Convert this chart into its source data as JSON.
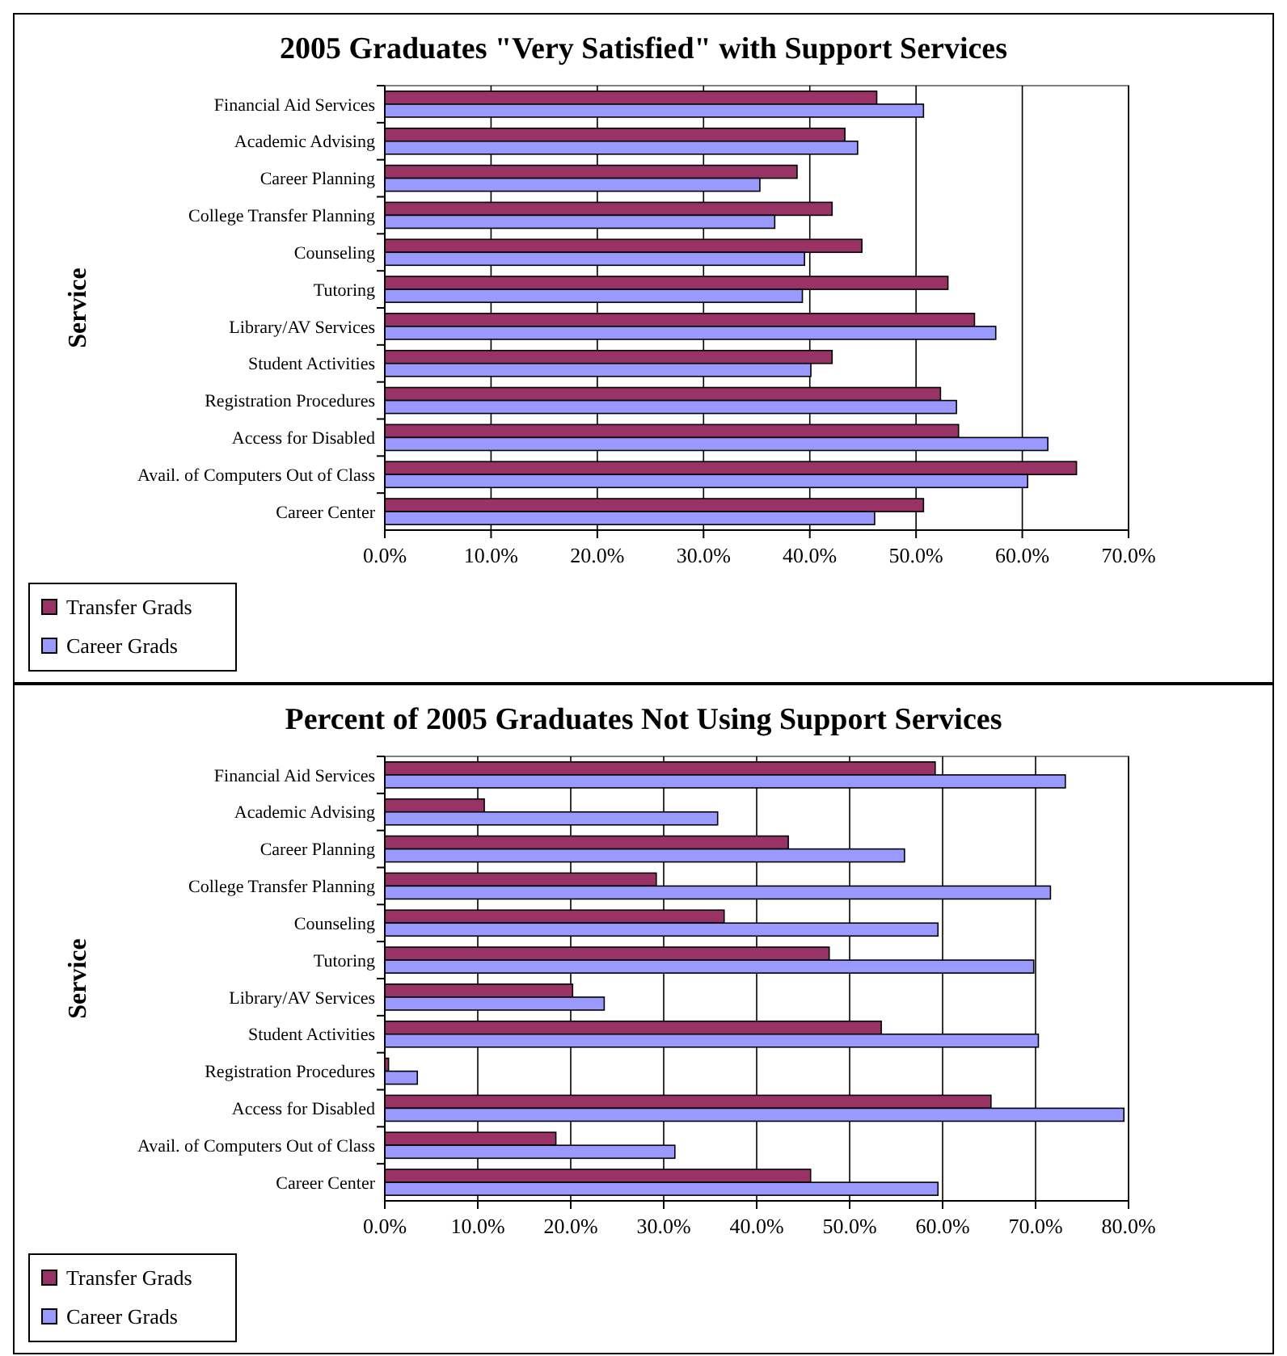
{
  "chart_data": [
    {
      "type": "bar",
      "orientation": "horizontal",
      "title": "2005 Graduates \"Very Satisfied\" with Support Services",
      "ylabel": "Service",
      "categories": [
        "Financial Aid Services",
        "Academic Advising",
        "Career Planning",
        "College Transfer Planning",
        "Counseling",
        "Tutoring",
        "Library/AV Services",
        "Student Activities",
        "Registration Procedures",
        "Access for Disabled",
        "Avail. of Computers Out of Class",
        "Career Center"
      ],
      "series": [
        {
          "name": "Transfer Grads",
          "color": "#993366",
          "values": [
            46.3,
            43.3,
            38.8,
            42.1,
            44.9,
            53.0,
            55.5,
            42.1,
            52.3,
            54.0,
            65.1,
            50.7
          ]
        },
        {
          "name": "Career Grads",
          "color": "#9999ff",
          "values": [
            50.7,
            44.5,
            35.3,
            36.7,
            39.5,
            39.3,
            57.5,
            40.1,
            53.8,
            62.4,
            60.5,
            46.1
          ]
        }
      ],
      "xlim": [
        0,
        70
      ],
      "xticks": [
        {
          "value": 0,
          "label": "0.0%"
        },
        {
          "value": 10,
          "label": "10.0%"
        },
        {
          "value": 20,
          "label": "20.0%"
        },
        {
          "value": 30,
          "label": "30.0%"
        },
        {
          "value": 40,
          "label": "40.0%"
        },
        {
          "value": 50,
          "label": "50.0%"
        },
        {
          "value": 60,
          "label": "60.0%"
        },
        {
          "value": 70,
          "label": "70.0%"
        }
      ],
      "grid": "x",
      "legend": "bottom left"
    },
    {
      "type": "bar",
      "orientation": "horizontal",
      "title": "Percent of 2005 Graduates Not Using Support Services",
      "ylabel": "Service",
      "categories": [
        "Financial Aid Services",
        "Academic Advising",
        "Career Planning",
        "College Transfer Planning",
        "Counseling",
        "Tutoring",
        "Library/AV Services",
        "Student Activities",
        "Registration Procedures",
        "Access for Disabled",
        "Avail. of Computers Out of Class",
        "Career Center"
      ],
      "series": [
        {
          "name": "Transfer Grads",
          "color": "#993366",
          "values": [
            59.2,
            10.7,
            43.4,
            29.2,
            36.5,
            47.8,
            20.2,
            53.4,
            0.4,
            65.2,
            18.4,
            45.8
          ]
        },
        {
          "name": "Career Grads",
          "color": "#9999ff",
          "values": [
            73.2,
            35.8,
            55.9,
            71.6,
            59.5,
            69.8,
            23.6,
            70.3,
            3.5,
            79.5,
            31.2,
            59.5
          ]
        }
      ],
      "xlim": [
        0,
        80
      ],
      "xticks": [
        {
          "value": 0,
          "label": "0.0%"
        },
        {
          "value": 10,
          "label": "10.0%"
        },
        {
          "value": 20,
          "label": "20.0%"
        },
        {
          "value": 30,
          "label": "30.0%"
        },
        {
          "value": 40,
          "label": "40.0%"
        },
        {
          "value": 50,
          "label": "50.0%"
        },
        {
          "value": 60,
          "label": "60.0%"
        },
        {
          "value": 70,
          "label": "70.0%"
        },
        {
          "value": 80,
          "label": "80.0%"
        }
      ],
      "grid": "x",
      "legend": "bottom left"
    }
  ]
}
